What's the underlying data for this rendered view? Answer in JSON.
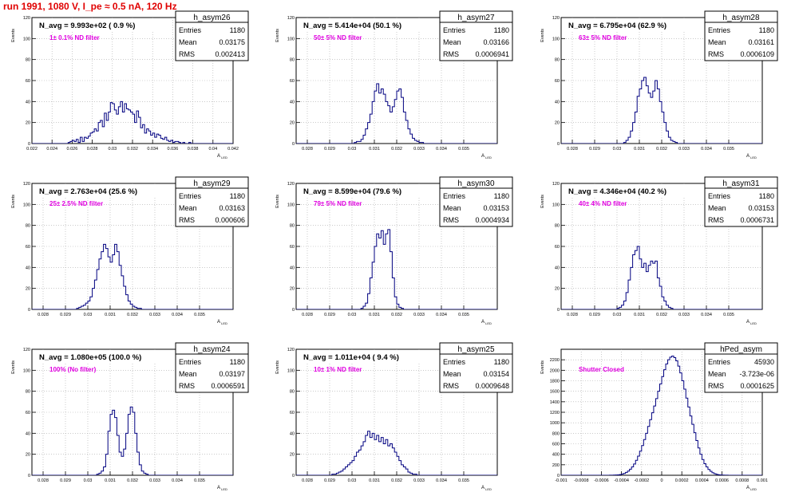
{
  "run_title": "run 1991,  1080 V, I_pe ≈ 0.5 nA, 120 Hz",
  "common": {
    "ylabel": "Events",
    "xlabel": "A",
    "xlabel_sub": "LED",
    "stats_labels": [
      "Entries",
      "Mean",
      "RMS"
    ],
    "line_color": "#000080",
    "note_color": "#e000e0",
    "title_color": "#e00000"
  },
  "chart_data": [
    {
      "type": "bar",
      "name": "h_asym26",
      "navg_text": "N_avg = 9.993e+02 ( 0.9 %)",
      "note": "1± 0.1% ND filter",
      "stats": {
        "Entries": "1180",
        "Mean": "0.03175",
        "RMS": "0.002413"
      },
      "xlim": [
        0.022,
        0.042
      ],
      "ylim": [
        0,
        120
      ],
      "xticks": [
        "0.022",
        "0.024",
        "0.026",
        "0.028",
        "0.03",
        "0.032",
        "0.034",
        "0.036",
        "0.038",
        "0.04",
        "0.042"
      ],
      "yticks": [
        "0",
        "20",
        "40",
        "60",
        "80",
        "100",
        "120"
      ],
      "bins": {
        "x0": 0.022,
        "width": 0.0002,
        "values": [
          0,
          0,
          0,
          0,
          0,
          0,
          0,
          0,
          0,
          0,
          0,
          0,
          0,
          0,
          0,
          0,
          0,
          0,
          1,
          2,
          3,
          2,
          4,
          1,
          6,
          2,
          6,
          5,
          7,
          10,
          11,
          14,
          12,
          20,
          22,
          16,
          29,
          22,
          30,
          39,
          38,
          32,
          28,
          35,
          40,
          30,
          38,
          33,
          32,
          30,
          28,
          20,
          31,
          25,
          15,
          18,
          10,
          14,
          12,
          8,
          10,
          6,
          9,
          8,
          5,
          4,
          6,
          3,
          2,
          3,
          1,
          2,
          2,
          1,
          0,
          1,
          0,
          0,
          1,
          0,
          0,
          0,
          0,
          0,
          0,
          0,
          0,
          0,
          0,
          0,
          0,
          0,
          0,
          0,
          0,
          0,
          0,
          0,
          0,
          0
        ]
      }
    },
    {
      "type": "bar",
      "name": "h_asym27",
      "navg_text": "N_avg = 5.414e+04 (50.1 %)",
      "note": "50± 5% ND filter",
      "stats": {
        "Entries": "1180",
        "Mean": "0.03166",
        "RMS": "0.0006941"
      },
      "xlim": [
        0.0275,
        0.0365
      ],
      "ylim": [
        0,
        120
      ],
      "xticks": [
        "0.028",
        "0.029",
        "0.03",
        "0.031",
        "0.032",
        "0.033",
        "0.034",
        "0.035"
      ],
      "yticks": [
        "0",
        "20",
        "40",
        "60",
        "80",
        "100",
        "120"
      ],
      "bins": {
        "x0": 0.0275,
        "width": 0.0001,
        "values": [
          0,
          0,
          0,
          0,
          0,
          0,
          0,
          0,
          0,
          0,
          0,
          0,
          0,
          0,
          0,
          0,
          0,
          0,
          0,
          0,
          0,
          0,
          0,
          0,
          0,
          0,
          1,
          2,
          2,
          4,
          8,
          14,
          20,
          28,
          40,
          50,
          57,
          48,
          52,
          47,
          40,
          36,
          30,
          35,
          42,
          50,
          52,
          44,
          30,
          22,
          14,
          9,
          5,
          3,
          2,
          1,
          1,
          0,
          0,
          0,
          0,
          0,
          0,
          0,
          0,
          0,
          0,
          0,
          0,
          0,
          0,
          0,
          0,
          0,
          0,
          0,
          0,
          0,
          0,
          0,
          0,
          0,
          0,
          0,
          0,
          0,
          0,
          0,
          0,
          0
        ]
      }
    },
    {
      "type": "bar",
      "name": "h_asym28",
      "navg_text": "N_avg = 6.795e+04 (62.9 %)",
      "note": "63± 5% ND filter",
      "stats": {
        "Entries": "1180",
        "Mean": "0.03161",
        "RMS": "0.0006109"
      },
      "xlim": [
        0.0275,
        0.0365
      ],
      "ylim": [
        0,
        120
      ],
      "xticks": [
        "0.028",
        "0.029",
        "0.03",
        "0.031",
        "0.032",
        "0.033",
        "0.034",
        "0.035"
      ],
      "yticks": [
        "0",
        "20",
        "40",
        "60",
        "80",
        "100",
        "120"
      ],
      "bins": {
        "x0": 0.0275,
        "width": 0.0001,
        "values": [
          0,
          0,
          0,
          0,
          0,
          0,
          0,
          0,
          0,
          0,
          0,
          0,
          0,
          0,
          0,
          0,
          0,
          0,
          0,
          0,
          0,
          0,
          0,
          0,
          0,
          0,
          0,
          0,
          1,
          3,
          6,
          12,
          20,
          30,
          45,
          52,
          60,
          63,
          55,
          48,
          44,
          50,
          60,
          52,
          40,
          30,
          20,
          12,
          6,
          3,
          2,
          1,
          0,
          0,
          0,
          0,
          0,
          0,
          0,
          0,
          0,
          0,
          0,
          0,
          0,
          0,
          0,
          0,
          0,
          0,
          0,
          0,
          0,
          0,
          0,
          0,
          0,
          0,
          0,
          0,
          0,
          0,
          0,
          0,
          0,
          0,
          0,
          0,
          0,
          0
        ]
      }
    },
    {
      "type": "bar",
      "name": "h_asym29",
      "navg_text": "N_avg = 2.763e+04 (25.6 %)",
      "note": "25± 2.5% ND filter",
      "stats": {
        "Entries": "1180",
        "Mean": "0.03163",
        "RMS": "0.000606"
      },
      "xlim": [
        0.0275,
        0.0365
      ],
      "ylim": [
        0,
        120
      ],
      "xticks": [
        "0.028",
        "0.029",
        "0.03",
        "0.031",
        "0.032",
        "0.033",
        "0.034",
        "0.035"
      ],
      "yticks": [
        "0",
        "20",
        "40",
        "60",
        "80",
        "100",
        "120"
      ],
      "bins": {
        "x0": 0.0275,
        "width": 0.0001,
        "values": [
          0,
          0,
          0,
          0,
          0,
          0,
          0,
          0,
          0,
          0,
          0,
          0,
          0,
          0,
          0,
          0,
          0,
          0,
          0,
          0,
          1,
          2,
          3,
          4,
          6,
          8,
          12,
          20,
          28,
          38,
          48,
          55,
          62,
          58,
          50,
          45,
          52,
          62,
          55,
          42,
          32,
          22,
          14,
          8,
          5,
          3,
          2,
          1,
          1,
          0,
          0,
          0,
          0,
          0,
          0,
          0,
          0,
          0,
          0,
          0,
          0,
          0,
          0,
          0,
          0,
          0,
          0,
          0,
          0,
          0,
          0,
          0,
          0,
          0,
          0,
          0,
          0,
          0,
          0,
          0,
          0,
          0,
          0,
          0,
          0,
          0,
          0,
          0,
          0,
          0
        ]
      }
    },
    {
      "type": "bar",
      "name": "h_asym30",
      "navg_text": "N_avg = 8.599e+04 (79.6 %)",
      "note": "79± 5% ND filter",
      "stats": {
        "Entries": "1180",
        "Mean": "0.03153",
        "RMS": "0.0004934"
      },
      "xlim": [
        0.0275,
        0.0365
      ],
      "ylim": [
        0,
        120
      ],
      "xticks": [
        "0.028",
        "0.029",
        "0.03",
        "0.031",
        "0.032",
        "0.033",
        "0.034",
        "0.035"
      ],
      "yticks": [
        "0",
        "20",
        "40",
        "60",
        "80",
        "100",
        "120"
      ],
      "bins": {
        "x0": 0.0275,
        "width": 0.0001,
        "values": [
          0,
          0,
          0,
          0,
          0,
          0,
          0,
          0,
          0,
          0,
          0,
          0,
          0,
          0,
          0,
          0,
          0,
          0,
          0,
          0,
          0,
          0,
          0,
          0,
          0,
          0,
          0,
          0,
          0,
          1,
          3,
          6,
          15,
          30,
          45,
          60,
          72,
          68,
          75,
          62,
          72,
          76,
          55,
          30,
          12,
          5,
          2,
          1,
          0,
          0,
          0,
          0,
          0,
          0,
          0,
          0,
          0,
          0,
          0,
          0,
          0,
          0,
          0,
          0,
          0,
          0,
          0,
          0,
          0,
          0,
          0,
          0,
          0,
          0,
          0,
          0,
          0,
          0,
          0,
          0,
          0,
          0,
          0,
          0,
          0,
          0,
          0,
          0,
          0,
          0
        ]
      }
    },
    {
      "type": "bar",
      "name": "h_asym31",
      "navg_text": "N_avg = 4.346e+04 (40.2 %)",
      "note": "40± 4% ND filter",
      "stats": {
        "Entries": "1180",
        "Mean": "0.03153",
        "RMS": "0.0006731"
      },
      "xlim": [
        0.0275,
        0.0365
      ],
      "ylim": [
        0,
        120
      ],
      "xticks": [
        "0.028",
        "0.029",
        "0.03",
        "0.031",
        "0.032",
        "0.033",
        "0.034",
        "0.035"
      ],
      "yticks": [
        "0",
        "20",
        "40",
        "60",
        "80",
        "100",
        "120"
      ],
      "bins": {
        "x0": 0.0275,
        "width": 0.0001,
        "values": [
          0,
          0,
          0,
          0,
          0,
          0,
          0,
          0,
          0,
          0,
          0,
          0,
          0,
          0,
          0,
          0,
          0,
          0,
          0,
          0,
          0,
          0,
          0,
          0,
          0,
          1,
          2,
          4,
          8,
          16,
          28,
          40,
          52,
          56,
          60,
          48,
          40,
          44,
          36,
          42,
          46,
          44,
          46,
          30,
          22,
          12,
          8,
          4,
          2,
          1,
          0,
          0,
          0,
          0,
          0,
          0,
          0,
          0,
          0,
          0,
          0,
          0,
          0,
          0,
          0,
          0,
          0,
          0,
          0,
          0,
          0,
          0,
          0,
          0,
          0,
          0,
          0,
          0,
          0,
          0,
          0,
          0,
          0,
          0,
          0,
          0,
          0,
          0,
          0,
          0
        ]
      }
    },
    {
      "type": "bar",
      "name": "h_asym24",
      "navg_text": "N_avg = 1.080e+05 (100.0 %)",
      "note": "100% (No filter)",
      "stats": {
        "Entries": "1180",
        "Mean": "0.03197",
        "RMS": "0.0006591"
      },
      "xlim": [
        0.0275,
        0.0365
      ],
      "ylim": [
        0,
        120
      ],
      "xticks": [
        "0.028",
        "0.029",
        "0.03",
        "0.031",
        "0.032",
        "0.033",
        "0.034",
        "0.035"
      ],
      "yticks": [
        "0",
        "20",
        "40",
        "60",
        "80",
        "100",
        "120"
      ],
      "bins": {
        "x0": 0.0275,
        "width": 0.0001,
        "values": [
          0,
          0,
          0,
          0,
          0,
          0,
          0,
          0,
          0,
          0,
          0,
          0,
          0,
          0,
          0,
          0,
          0,
          0,
          0,
          0,
          0,
          0,
          0,
          0,
          0,
          0,
          0,
          0,
          0,
          1,
          2,
          4,
          8,
          20,
          42,
          58,
          62,
          55,
          38,
          22,
          18,
          25,
          40,
          58,
          65,
          60,
          40,
          22,
          10,
          4,
          2,
          1,
          0,
          0,
          0,
          0,
          0,
          0,
          0,
          0,
          0,
          0,
          0,
          0,
          0,
          0,
          0,
          0,
          0,
          0,
          0,
          0,
          0,
          0,
          0,
          0,
          0,
          0,
          0,
          0,
          0,
          0,
          0,
          0,
          0,
          0,
          0,
          0,
          0,
          0
        ]
      }
    },
    {
      "type": "bar",
      "name": "h_asym25",
      "navg_text": "N_avg = 1.011e+04 ( 9.4 %)",
      "note": "10± 1% ND filter",
      "stats": {
        "Entries": "1180",
        "Mean": "0.03154",
        "RMS": "0.0009648"
      },
      "xlim": [
        0.0275,
        0.0365
      ],
      "ylim": [
        0,
        120
      ],
      "xticks": [
        "0.028",
        "0.029",
        "0.03",
        "0.031",
        "0.032",
        "0.033",
        "0.034",
        "0.035"
      ],
      "yticks": [
        "0",
        "20",
        "40",
        "60",
        "80",
        "100",
        "120"
      ],
      "bins": {
        "x0": 0.0275,
        "width": 0.0001,
        "values": [
          0,
          0,
          0,
          0,
          0,
          0,
          0,
          0,
          0,
          0,
          0,
          0,
          0,
          0,
          0,
          0,
          1,
          1,
          2,
          3,
          4,
          6,
          8,
          10,
          12,
          14,
          18,
          22,
          24,
          28,
          32,
          38,
          42,
          36,
          40,
          34,
          38,
          32,
          36,
          30,
          34,
          28,
          30,
          26,
          22,
          18,
          14,
          10,
          8,
          6,
          3,
          2,
          1,
          1,
          0,
          0,
          0,
          0,
          0,
          0,
          0,
          0,
          0,
          0,
          0,
          0,
          0,
          0,
          0,
          0,
          0,
          0,
          0,
          0,
          0,
          0,
          0,
          0,
          0,
          0,
          0,
          0,
          0,
          0,
          0,
          0,
          0,
          0,
          0,
          0
        ]
      }
    },
    {
      "type": "bar",
      "name": "hPed_asym",
      "navg_text": "",
      "note": "Shutter Closed",
      "stats": {
        "Entries": "45930",
        "Mean": "-3.723e-06",
        "RMS": "0.0001625"
      },
      "xlim": [
        -0.001,
        0.001
      ],
      "ylim": [
        0,
        2400
      ],
      "xticks": [
        "-0.001",
        "-0.0008",
        "-0.0006",
        "-0.0004",
        "-0.0002",
        "0",
        "0.0002",
        "0.0004",
        "0.0006",
        "0.0008",
        "0.001"
      ],
      "yticks": [
        "0",
        "200",
        "400",
        "600",
        "800",
        "1000",
        "1200",
        "1400",
        "1600",
        "1800",
        "2000",
        "2200"
      ],
      "bins": {
        "x0": -0.001,
        "width": 2e-05,
        "values": [
          0,
          0,
          0,
          0,
          0,
          0,
          0,
          0,
          0,
          0,
          0,
          0,
          0,
          0,
          0,
          0,
          0,
          0,
          0,
          0,
          0,
          0,
          0,
          0,
          1,
          2,
          3,
          5,
          8,
          14,
          22,
          35,
          55,
          80,
          115,
          160,
          215,
          285,
          365,
          460,
          565,
          680,
          800,
          930,
          1060,
          1190,
          1320,
          1460,
          1600,
          1740,
          1880,
          2010,
          2120,
          2200,
          2250,
          2270,
          2240,
          2180,
          2080,
          1950,
          1800,
          1640,
          1470,
          1300,
          1130,
          970,
          810,
          660,
          520,
          400,
          300,
          220,
          160,
          110,
          75,
          48,
          30,
          18,
          10,
          6,
          3,
          2,
          1,
          0,
          0,
          0,
          0,
          0,
          0,
          0,
          0,
          0,
          0,
          0,
          0,
          0,
          0,
          0,
          0,
          0
        ]
      }
    }
  ]
}
